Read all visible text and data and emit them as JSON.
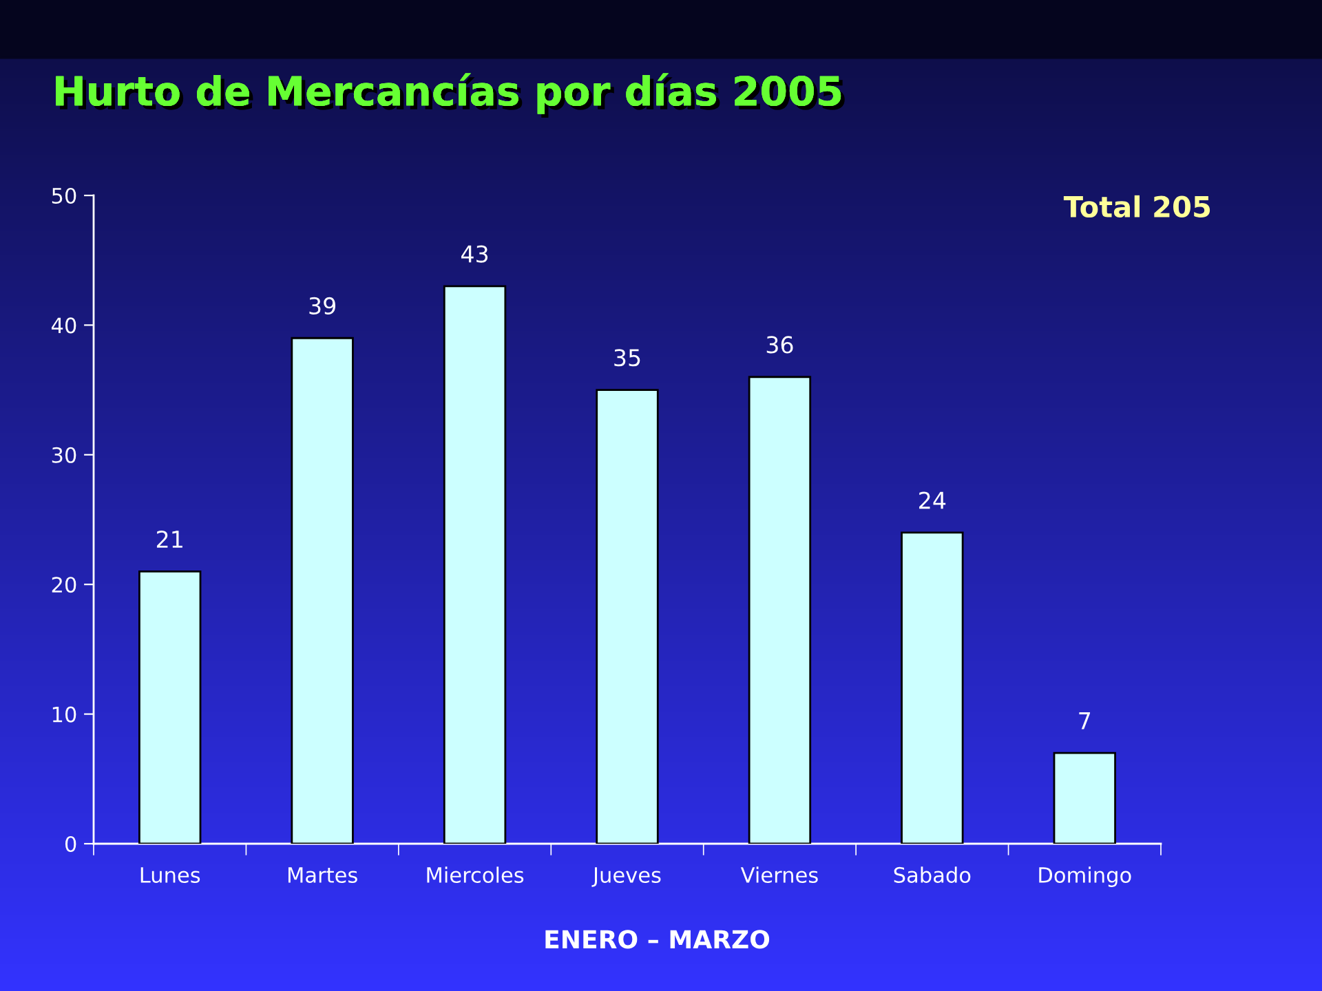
{
  "chart_data": {
    "type": "bar",
    "title": "Hurto de Mercancías por días 2005",
    "categories": [
      "Lunes",
      "Martes",
      "Miercoles",
      "Jueves",
      "Viernes",
      "Sabado",
      "Domingo"
    ],
    "values": [
      21,
      39,
      43,
      35,
      36,
      24,
      7
    ],
    "color": "#ccffff",
    "ylim": [
      0,
      50
    ],
    "yticks": [
      0,
      10,
      20,
      30,
      40,
      50
    ],
    "grid": false,
    "data_labels": true,
    "annotations": [
      "Total 205",
      "ENERO – MARZO"
    ]
  }
}
